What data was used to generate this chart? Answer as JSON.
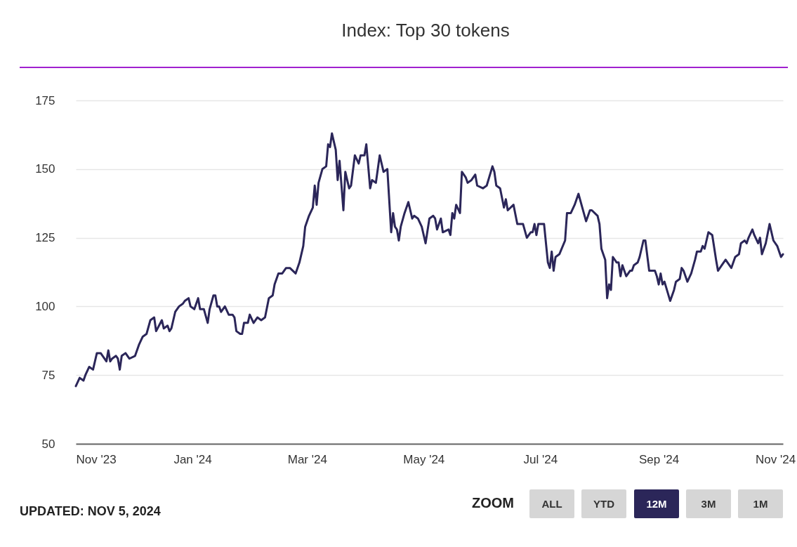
{
  "chart_data": {
    "type": "line",
    "title": "Index: Top 30 tokens",
    "xlim": [
      "2023-11-01",
      "2024-11-05"
    ],
    "xticks": [
      {
        "value": "2023-11-01",
        "label": "Nov '23"
      },
      {
        "value": "2024-01-01",
        "label": "Jan '24"
      },
      {
        "value": "2024-03-01",
        "label": "Mar '24"
      },
      {
        "value": "2024-05-01",
        "label": "May '24"
      },
      {
        "value": "2024-07-01",
        "label": "Jul '24"
      },
      {
        "value": "2024-09-01",
        "label": "Sep '24"
      },
      {
        "value": "2024-11-01",
        "label": "Nov '24"
      }
    ],
    "ylim": [
      50,
      175
    ],
    "yticks": [
      50,
      75,
      100,
      125,
      150,
      175
    ],
    "grid": "y",
    "series": [
      {
        "color": "#2b2659",
        "x": [
          "2023-11-01",
          "2023-11-03",
          "2023-11-05",
          "2023-11-06",
          "2023-11-08",
          "2023-11-10",
          "2023-11-12",
          "2023-11-14",
          "2023-11-17",
          "2023-11-18",
          "2023-11-19",
          "2023-11-20",
          "2023-11-22",
          "2023-11-23",
          "2023-11-24",
          "2023-11-25",
          "2023-11-27",
          "2023-11-29",
          "2023-12-02",
          "2023-12-04",
          "2023-12-06",
          "2023-12-08",
          "2023-12-10",
          "2023-12-12",
          "2023-12-13",
          "2023-12-16",
          "2023-12-17",
          "2023-12-19",
          "2023-12-20",
          "2023-12-21",
          "2023-12-23",
          "2023-12-25",
          "2023-12-27",
          "2023-12-28",
          "2023-12-30",
          "2023-12-31",
          "2024-01-02",
          "2024-01-04",
          "2024-01-05",
          "2024-01-07",
          "2024-01-09",
          "2024-01-10",
          "2024-01-12",
          "2024-01-13",
          "2024-01-14",
          "2024-01-15",
          "2024-01-16",
          "2024-01-18",
          "2024-01-20",
          "2024-01-22",
          "2024-01-23",
          "2024-01-24",
          "2024-01-26",
          "2024-01-27",
          "2024-01-28",
          "2024-01-30",
          "2024-01-31",
          "2024-02-02",
          "2024-02-04",
          "2024-02-06",
          "2024-02-08",
          "2024-02-10",
          "2024-02-12",
          "2024-02-13",
          "2024-02-15",
          "2024-02-17",
          "2024-02-19",
          "2024-02-21",
          "2024-02-24",
          "2024-02-26",
          "2024-02-28",
          "2024-02-29",
          "2024-03-02",
          "2024-03-04",
          "2024-03-05",
          "2024-03-06",
          "2024-03-07",
          "2024-03-09",
          "2024-03-11",
          "2024-03-12",
          "2024-03-13",
          "2024-03-14",
          "2024-03-16",
          "2024-03-17",
          "2024-03-18",
          "2024-03-20",
          "2024-03-21",
          "2024-03-23",
          "2024-03-24",
          "2024-03-26",
          "2024-03-28",
          "2024-03-29",
          "2024-03-31",
          "2024-04-01",
          "2024-04-03",
          "2024-04-04",
          "2024-04-06",
          "2024-04-08",
          "2024-04-10",
          "2024-04-12",
          "2024-04-14",
          "2024-04-15",
          "2024-04-16",
          "2024-04-17",
          "2024-04-18",
          "2024-04-19",
          "2024-04-21",
          "2024-04-23",
          "2024-04-25",
          "2024-04-26",
          "2024-04-28",
          "2024-04-30",
          "2024-05-02",
          "2024-05-04",
          "2024-05-06",
          "2024-05-07",
          "2024-05-08",
          "2024-05-10",
          "2024-05-11",
          "2024-05-14",
          "2024-05-15",
          "2024-05-16",
          "2024-05-17",
          "2024-05-18",
          "2024-05-20",
          "2024-05-21",
          "2024-05-23",
          "2024-05-24",
          "2024-05-26",
          "2024-05-28",
          "2024-05-29",
          "2024-06-01",
          "2024-06-03",
          "2024-06-06",
          "2024-06-07",
          "2024-06-08",
          "2024-06-10",
          "2024-06-12",
          "2024-06-13",
          "2024-06-14",
          "2024-06-17",
          "2024-06-19",
          "2024-06-20",
          "2024-06-22",
          "2024-06-24",
          "2024-06-26",
          "2024-06-27",
          "2024-06-28",
          "2024-06-29",
          "2024-06-30",
          "2024-07-03",
          "2024-07-05",
          "2024-07-06",
          "2024-07-07",
          "2024-07-08",
          "2024-07-09",
          "2024-07-11",
          "2024-07-14",
          "2024-07-15",
          "2024-07-17",
          "2024-07-19",
          "2024-07-21",
          "2024-07-23",
          "2024-07-25",
          "2024-07-27",
          "2024-07-28",
          "2024-07-31",
          "2024-08-01",
          "2024-08-02",
          "2024-08-04",
          "2024-08-05",
          "2024-08-06",
          "2024-08-07",
          "2024-08-08",
          "2024-08-10",
          "2024-08-11",
          "2024-08-12",
          "2024-08-13",
          "2024-08-15",
          "2024-08-17",
          "2024-08-18",
          "2024-08-19",
          "2024-08-21",
          "2024-08-22",
          "2024-08-24",
          "2024-08-25",
          "2024-08-27",
          "2024-08-30",
          "2024-08-31",
          "2024-09-01",
          "2024-09-02",
          "2024-09-03",
          "2024-09-04",
          "2024-09-07",
          "2024-09-09",
          "2024-09-10",
          "2024-09-12",
          "2024-09-13",
          "2024-09-14",
          "2024-09-16",
          "2024-09-18",
          "2024-09-20",
          "2024-09-21",
          "2024-09-23",
          "2024-09-24",
          "2024-09-25",
          "2024-09-27",
          "2024-09-29",
          "2024-10-01",
          "2024-10-02",
          "2024-10-04",
          "2024-10-06",
          "2024-10-07",
          "2024-10-09",
          "2024-10-11",
          "2024-10-13",
          "2024-10-14",
          "2024-10-16",
          "2024-10-17",
          "2024-10-18",
          "2024-10-20",
          "2024-10-21",
          "2024-10-23",
          "2024-10-24",
          "2024-10-25",
          "2024-10-27",
          "2024-10-29",
          "2024-10-31",
          "2024-11-02",
          "2024-11-03",
          "2024-11-04",
          "2024-11-05"
        ],
        "values": [
          71,
          74,
          73,
          75,
          78,
          77,
          83,
          83,
          80,
          84,
          80,
          81,
          82,
          81,
          77,
          82,
          83,
          81,
          82,
          86,
          89,
          90,
          95,
          96,
          91,
          95,
          92,
          93,
          91,
          92,
          98,
          100,
          101,
          102,
          103,
          100,
          99,
          103,
          99,
          99,
          94,
          99,
          104,
          104,
          100,
          100,
          98,
          100,
          97,
          97,
          96,
          91,
          90,
          90,
          94,
          94,
          97,
          94,
          96,
          95,
          96,
          103,
          104,
          108,
          112,
          112,
          114,
          114,
          112,
          116,
          122,
          129,
          133,
          136,
          144,
          137,
          145,
          150,
          151,
          159,
          158,
          163,
          157,
          146,
          153,
          135,
          149,
          143,
          144,
          155,
          152,
          155,
          155,
          159,
          143,
          146,
          145,
          155,
          149,
          150,
          127,
          134,
          129,
          128,
          124,
          129,
          134,
          138,
          132,
          133,
          132,
          129,
          123,
          132,
          133,
          132,
          128,
          132,
          127,
          128,
          126,
          134,
          132,
          137,
          134,
          149,
          147,
          145,
          146,
          148,
          144,
          143,
          144,
          151,
          149,
          144,
          143,
          136,
          139,
          135,
          137,
          130,
          130,
          130,
          125,
          127,
          127,
          130,
          126,
          130,
          130,
          116,
          114,
          120,
          113,
          118,
          119,
          124,
          134,
          134,
          137,
          141,
          136,
          131,
          135,
          135,
          133,
          130,
          121,
          117,
          103,
          108,
          106,
          118,
          116,
          116,
          111,
          115,
          111,
          113,
          113,
          115,
          116,
          118,
          124,
          124,
          113,
          113,
          111,
          108,
          112,
          108,
          109,
          102,
          106,
          109,
          110,
          114,
          113,
          109,
          112,
          117,
          120,
          120,
          122,
          121,
          127,
          126,
          117,
          113,
          115,
          117,
          116,
          114,
          118,
          119,
          123,
          124,
          123,
          125,
          128,
          126,
          123,
          125,
          119,
          123,
          130,
          124,
          122,
          120,
          118,
          119
        ]
      }
    ],
    "annotations": [
      "UPDATED: NOV 5, 2024",
      "ZOOM",
      "ALL",
      "YTD",
      "12M",
      "3M",
      "1M"
    ]
  }
}
